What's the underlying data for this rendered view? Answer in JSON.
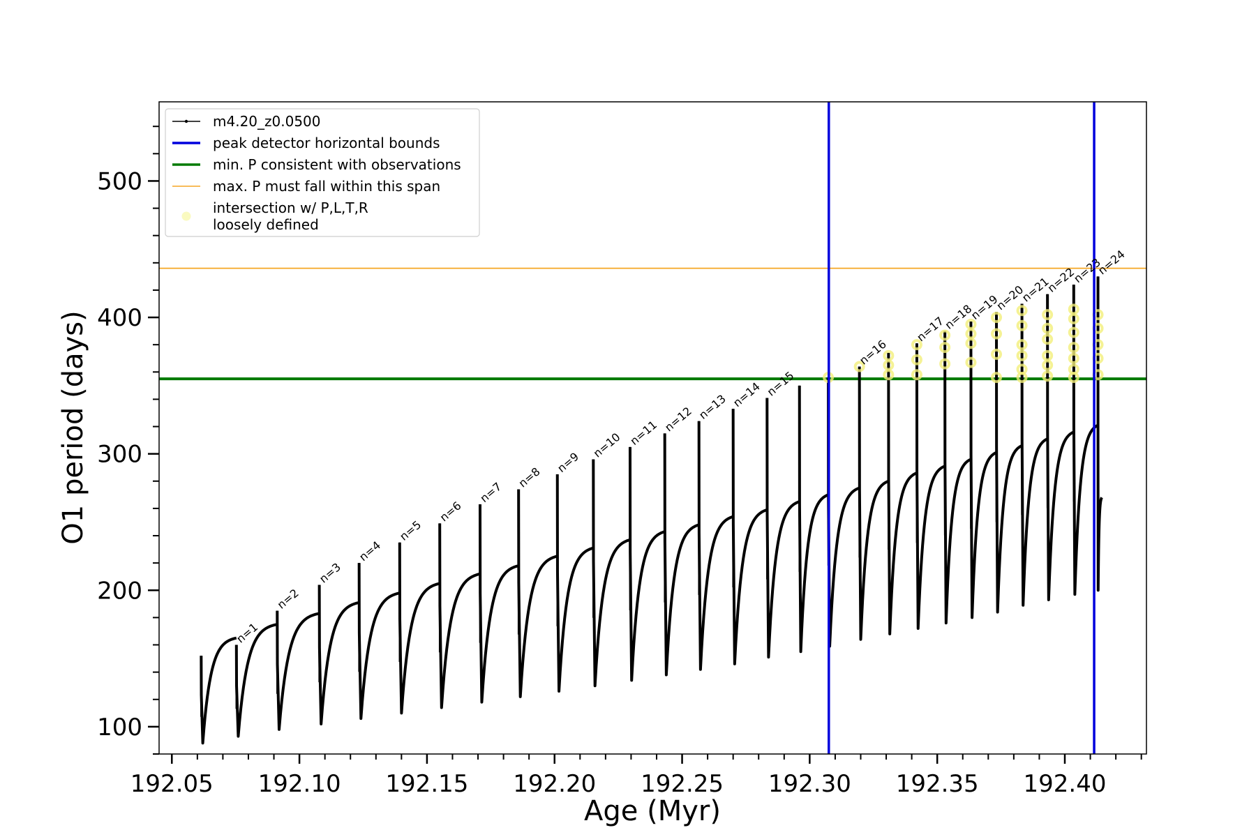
{
  "chart_data": {
    "type": "line",
    "title": "",
    "xlabel": "Age (Myr)",
    "ylabel": "O1 period (days)",
    "xlim": [
      192.045,
      192.432
    ],
    "ylim": [
      80,
      558
    ],
    "xticks": [
      "192.05",
      "192.10",
      "192.15",
      "192.20",
      "192.25",
      "192.30",
      "192.35",
      "192.40"
    ],
    "yticks": [
      "100",
      "200",
      "300",
      "400",
      "500"
    ],
    "legend_position": "top-left",
    "legend": [
      {
        "label": "m4.20_z0.0500",
        "style": "line-marker",
        "color": "#000000"
      },
      {
        "label": "peak detector horizontal bounds",
        "style": "line",
        "color": "#0000dd"
      },
      {
        "label": "min. P consistent with observations",
        "style": "line",
        "color": "#007a00"
      },
      {
        "label": "max. P must fall within this span",
        "style": "thin-line",
        "color": "#f5a623"
      },
      {
        "label": "intersection w/ P,L,T,R\nloosely defined",
        "style": "circle",
        "color": "#fafac0"
      }
    ],
    "reference_lines": {
      "min_P": 355,
      "max_P": 436,
      "peak_bounds": [
        192.3075,
        192.4115
      ]
    },
    "pulse_starts": [
      192.0615,
      192.0763,
      192.0911,
      192.1078,
      192.1235,
      192.1393,
      192.1551,
      192.171,
      192.1866,
      192.2016,
      192.2162,
      192.2301,
      192.2437,
      192.257,
      192.2697,
      192.2826,
      192.2948,
      192.3063,
      192.3199,
      192.3313,
      192.3424,
      192.353,
      192.3632,
      192.3732,
      192.3832,
      192.3932,
      192.4035,
      192.413
    ],
    "cycles": [
      {
        "n": "",
        "start": 192.0615,
        "end": 192.0753,
        "spike": 152,
        "dip": 88,
        "plateau": 165
      },
      {
        "n": "n=1",
        "start": 192.0753,
        "end": 192.0913,
        "spike": 160,
        "dip": 93,
        "plateau": 175
      },
      {
        "n": "n=2",
        "start": 192.0913,
        "end": 192.1078,
        "spike": 185,
        "dip": 98,
        "plateau": 183
      },
      {
        "n": "n=3",
        "start": 192.1078,
        "end": 192.1234,
        "spike": 204,
        "dip": 102,
        "plateau": 191
      },
      {
        "n": "n=4",
        "start": 192.1234,
        "end": 192.1393,
        "spike": 220,
        "dip": 106,
        "plateau": 198
      },
      {
        "n": "n=5",
        "start": 192.1393,
        "end": 192.155,
        "spike": 235,
        "dip": 110,
        "plateau": 205
      },
      {
        "n": "n=6",
        "start": 192.155,
        "end": 192.1708,
        "spike": 249,
        "dip": 114,
        "plateau": 212
      },
      {
        "n": "n=7",
        "start": 192.1708,
        "end": 192.1859,
        "spike": 263,
        "dip": 118,
        "plateau": 218
      },
      {
        "n": "n=8",
        "start": 192.1859,
        "end": 192.2011,
        "spike": 274,
        "dip": 122,
        "plateau": 225
      },
      {
        "n": "n=9",
        "start": 192.2011,
        "end": 192.2152,
        "spike": 285,
        "dip": 126,
        "plateau": 231
      },
      {
        "n": "n=10",
        "start": 192.2152,
        "end": 192.2296,
        "spike": 296,
        "dip": 130,
        "plateau": 237
      },
      {
        "n": "n=11",
        "start": 192.2296,
        "end": 192.2432,
        "spike": 305,
        "dip": 134,
        "plateau": 243
      },
      {
        "n": "n=12",
        "start": 192.2432,
        "end": 192.2566,
        "spike": 315,
        "dip": 138,
        "plateau": 248
      },
      {
        "n": "n=13",
        "start": 192.2566,
        "end": 192.27,
        "spike": 324,
        "dip": 142,
        "plateau": 254
      },
      {
        "n": "n=14",
        "start": 192.27,
        "end": 192.2833,
        "spike": 333,
        "dip": 146,
        "plateau": 259
      },
      {
        "n": "n=15",
        "start": 192.2833,
        "end": 192.296,
        "spike": 341,
        "dip": 151,
        "plateau": 265
      },
      {
        "n": "",
        "start": 192.296,
        "end": 192.3073,
        "spike": 350,
        "dip": 155,
        "plateau": 270
      },
      {
        "n": "",
        "start": 192.3073,
        "end": 192.3195,
        "spike": 356,
        "dip": 159,
        "plateau": 275
      },
      {
        "n": "n=16",
        "start": 192.3195,
        "end": 192.3309,
        "spike": 364,
        "dip": 164,
        "plateau": 280
      },
      {
        "n": "",
        "start": 192.3309,
        "end": 192.342,
        "spike": 374,
        "dip": 168,
        "plateau": 286
      },
      {
        "n": "n=17",
        "start": 192.342,
        "end": 192.353,
        "spike": 381,
        "dip": 172,
        "plateau": 291
      },
      {
        "n": "n=18",
        "start": 192.353,
        "end": 192.3632,
        "spike": 390,
        "dip": 176,
        "plateau": 296
      },
      {
        "n": "n=19",
        "start": 192.3632,
        "end": 192.3732,
        "spike": 397,
        "dip": 180,
        "plateau": 301
      },
      {
        "n": "n=20",
        "start": 192.3732,
        "end": 192.3832,
        "spike": 404,
        "dip": 184,
        "plateau": 306
      },
      {
        "n": "n=21",
        "start": 192.3832,
        "end": 192.3932,
        "spike": 410,
        "dip": 189,
        "plateau": 311
      },
      {
        "n": "n=22",
        "start": 192.3932,
        "end": 192.4035,
        "spike": 417,
        "dip": 193,
        "plateau": 316
      },
      {
        "n": "n=23",
        "start": 192.4035,
        "end": 192.413,
        "spike": 424,
        "dip": 197,
        "plateau": 321
      },
      {
        "n": "n=24",
        "start": 192.413,
        "end": 192.4145,
        "spike": 430,
        "dip": 200,
        "plateau": 268
      }
    ],
    "intersections": [
      {
        "x": 192.3073,
        "y": 356
      },
      {
        "x": 192.3195,
        "y": 364
      },
      {
        "x": 192.3309,
        "y": 372
      },
      {
        "x": 192.3309,
        "y": 365
      },
      {
        "x": 192.3309,
        "y": 358
      },
      {
        "x": 192.342,
        "y": 380
      },
      {
        "x": 192.342,
        "y": 369
      },
      {
        "x": 192.342,
        "y": 358
      },
      {
        "x": 192.353,
        "y": 387
      },
      {
        "x": 192.353,
        "y": 378
      },
      {
        "x": 192.353,
        "y": 366
      },
      {
        "x": 192.3632,
        "y": 395
      },
      {
        "x": 192.3632,
        "y": 388
      },
      {
        "x": 192.3632,
        "y": 381
      },
      {
        "x": 192.3632,
        "y": 367
      },
      {
        "x": 192.3732,
        "y": 400
      },
      {
        "x": 192.3732,
        "y": 388
      },
      {
        "x": 192.3732,
        "y": 373
      },
      {
        "x": 192.3732,
        "y": 356
      },
      {
        "x": 192.3832,
        "y": 405
      },
      {
        "x": 192.3832,
        "y": 394
      },
      {
        "x": 192.3832,
        "y": 380
      },
      {
        "x": 192.3832,
        "y": 372
      },
      {
        "x": 192.3832,
        "y": 362
      },
      {
        "x": 192.3832,
        "y": 356
      },
      {
        "x": 192.3932,
        "y": 402
      },
      {
        "x": 192.3932,
        "y": 392
      },
      {
        "x": 192.3932,
        "y": 384
      },
      {
        "x": 192.3932,
        "y": 372
      },
      {
        "x": 192.3932,
        "y": 365
      },
      {
        "x": 192.3932,
        "y": 357
      },
      {
        "x": 192.4035,
        "y": 406
      },
      {
        "x": 192.4035,
        "y": 399
      },
      {
        "x": 192.4035,
        "y": 389
      },
      {
        "x": 192.4035,
        "y": 378
      },
      {
        "x": 192.4035,
        "y": 370
      },
      {
        "x": 192.4035,
        "y": 362
      },
      {
        "x": 192.4035,
        "y": 356
      },
      {
        "x": 192.413,
        "y": 402
      },
      {
        "x": 192.413,
        "y": 392
      },
      {
        "x": 192.413,
        "y": 380
      },
      {
        "x": 192.413,
        "y": 370
      },
      {
        "x": 192.413,
        "y": 358
      }
    ],
    "colors": {
      "series": "#000000",
      "peak_bounds": "#0000dd",
      "min_P": "#007a00",
      "max_P": "#f5a623",
      "intersection": "#f2ef7a"
    }
  }
}
